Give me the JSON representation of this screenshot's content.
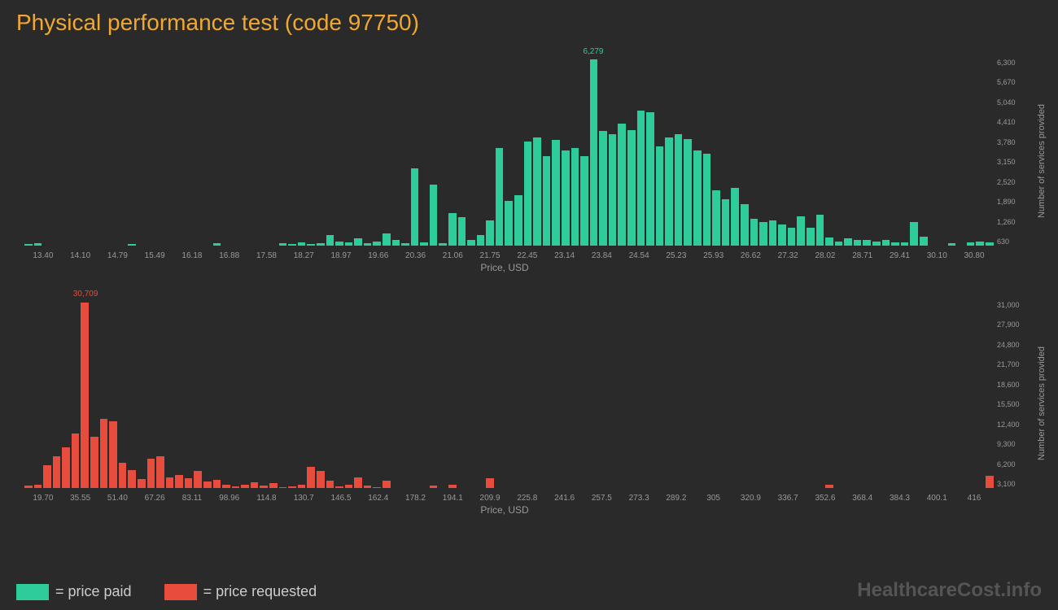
{
  "title": "Physical performance test (code 97750)",
  "watermark": "HealthcareCost.info",
  "colors": {
    "background": "#2a2a2a",
    "title": "#f0a830",
    "paid": "#2ecc9b",
    "requested": "#e74c3c",
    "axis_text": "#999999"
  },
  "legend": [
    {
      "color": "#2ecc9b",
      "label": "= price paid"
    },
    {
      "color": "#e74c3c",
      "label": "= price requested"
    }
  ],
  "chart_paid": {
    "type": "bar",
    "bar_color": "#2ecc9b",
    "x_label": "Price, USD",
    "y_label": "Number of services provided",
    "ymax": 6300,
    "x_ticks": [
      "13.40",
      "14.10",
      "14.79",
      "15.49",
      "16.18",
      "16.88",
      "17.58",
      "18.27",
      "18.97",
      "19.66",
      "20.36",
      "21.06",
      "21.75",
      "22.45",
      "23.14",
      "23.84",
      "24.54",
      "25.23",
      "25.93",
      "26.62",
      "27.32",
      "28.02",
      "28.71",
      "29.41",
      "30.10",
      "30.80"
    ],
    "y_ticks": [
      "630",
      "1,260",
      "1,890",
      "2,520",
      "3,150",
      "3,780",
      "4,410",
      "5,040",
      "5,670",
      "6,300"
    ],
    "peak": {
      "value": "6,279",
      "index": 60,
      "color": "#2ecc9b"
    },
    "values": [
      50,
      80,
      0,
      0,
      0,
      0,
      0,
      0,
      0,
      0,
      0,
      60,
      0,
      0,
      0,
      0,
      0,
      0,
      0,
      0,
      70,
      0,
      0,
      0,
      0,
      0,
      0,
      80,
      50,
      100,
      60,
      80,
      350,
      150,
      100,
      250,
      80,
      150,
      400,
      200,
      80,
      2600,
      100,
      2050,
      80,
      1100,
      950,
      200,
      350,
      850,
      3300,
      1500,
      1700,
      3500,
      3650,
      3000,
      3550,
      3200,
      3300,
      3000,
      6279,
      3850,
      3750,
      4100,
      3900,
      4550,
      4500,
      3350,
      3650,
      3750,
      3600,
      3200,
      3100,
      1850,
      1550,
      1950,
      1400,
      900,
      800,
      850,
      700,
      600,
      1000,
      600,
      1050,
      280,
      150,
      250,
      200,
      200,
      150,
      180,
      100,
      120,
      800,
      300,
      0,
      0,
      70,
      0,
      100,
      150,
      100
    ]
  },
  "chart_requested": {
    "type": "bar",
    "bar_color": "#e74c3c",
    "x_label": "Price, USD",
    "y_label": "Number of services provided",
    "ymax": 31000,
    "x_ticks": [
      "19.70",
      "35.55",
      "51.40",
      "67.26",
      "83.11",
      "98.96",
      "114.8",
      "130.7",
      "146.5",
      "162.4",
      "178.2",
      "194.1",
      "209.9",
      "225.8",
      "241.6",
      "257.5",
      "273.3",
      "289.2",
      "305",
      "320.9",
      "336.7",
      "352.6",
      "368.4",
      "384.3",
      "400.1",
      "416"
    ],
    "y_ticks": [
      "3,100",
      "6,200",
      "9,300",
      "12,400",
      "15,500",
      "18,600",
      "21,700",
      "24,800",
      "27,900",
      "31,000"
    ],
    "peak": {
      "value": "30,709",
      "index": 6,
      "color": "#e74c3c"
    },
    "values": [
      400,
      600,
      3800,
      5200,
      6800,
      9000,
      30709,
      8500,
      11500,
      11000,
      4200,
      3000,
      1500,
      4800,
      5200,
      1800,
      2200,
      1600,
      2800,
      1100,
      1400,
      600,
      300,
      600,
      1000,
      400,
      800,
      200,
      300,
      500,
      3500,
      2800,
      1200,
      300,
      600,
      1800,
      400,
      200,
      1200,
      0,
      0,
      0,
      0,
      400,
      0,
      500,
      0,
      0,
      0,
      1600,
      0,
      0,
      0,
      0,
      0,
      0,
      0,
      0,
      0,
      0,
      0,
      0,
      0,
      0,
      0,
      0,
      0,
      0,
      0,
      0,
      0,
      0,
      0,
      0,
      0,
      0,
      0,
      0,
      0,
      0,
      0,
      0,
      0,
      0,
      0,
      500,
      0,
      0,
      0,
      0,
      0,
      0,
      0,
      0,
      0,
      0,
      0,
      0,
      0,
      0,
      0,
      0,
      2000
    ]
  }
}
